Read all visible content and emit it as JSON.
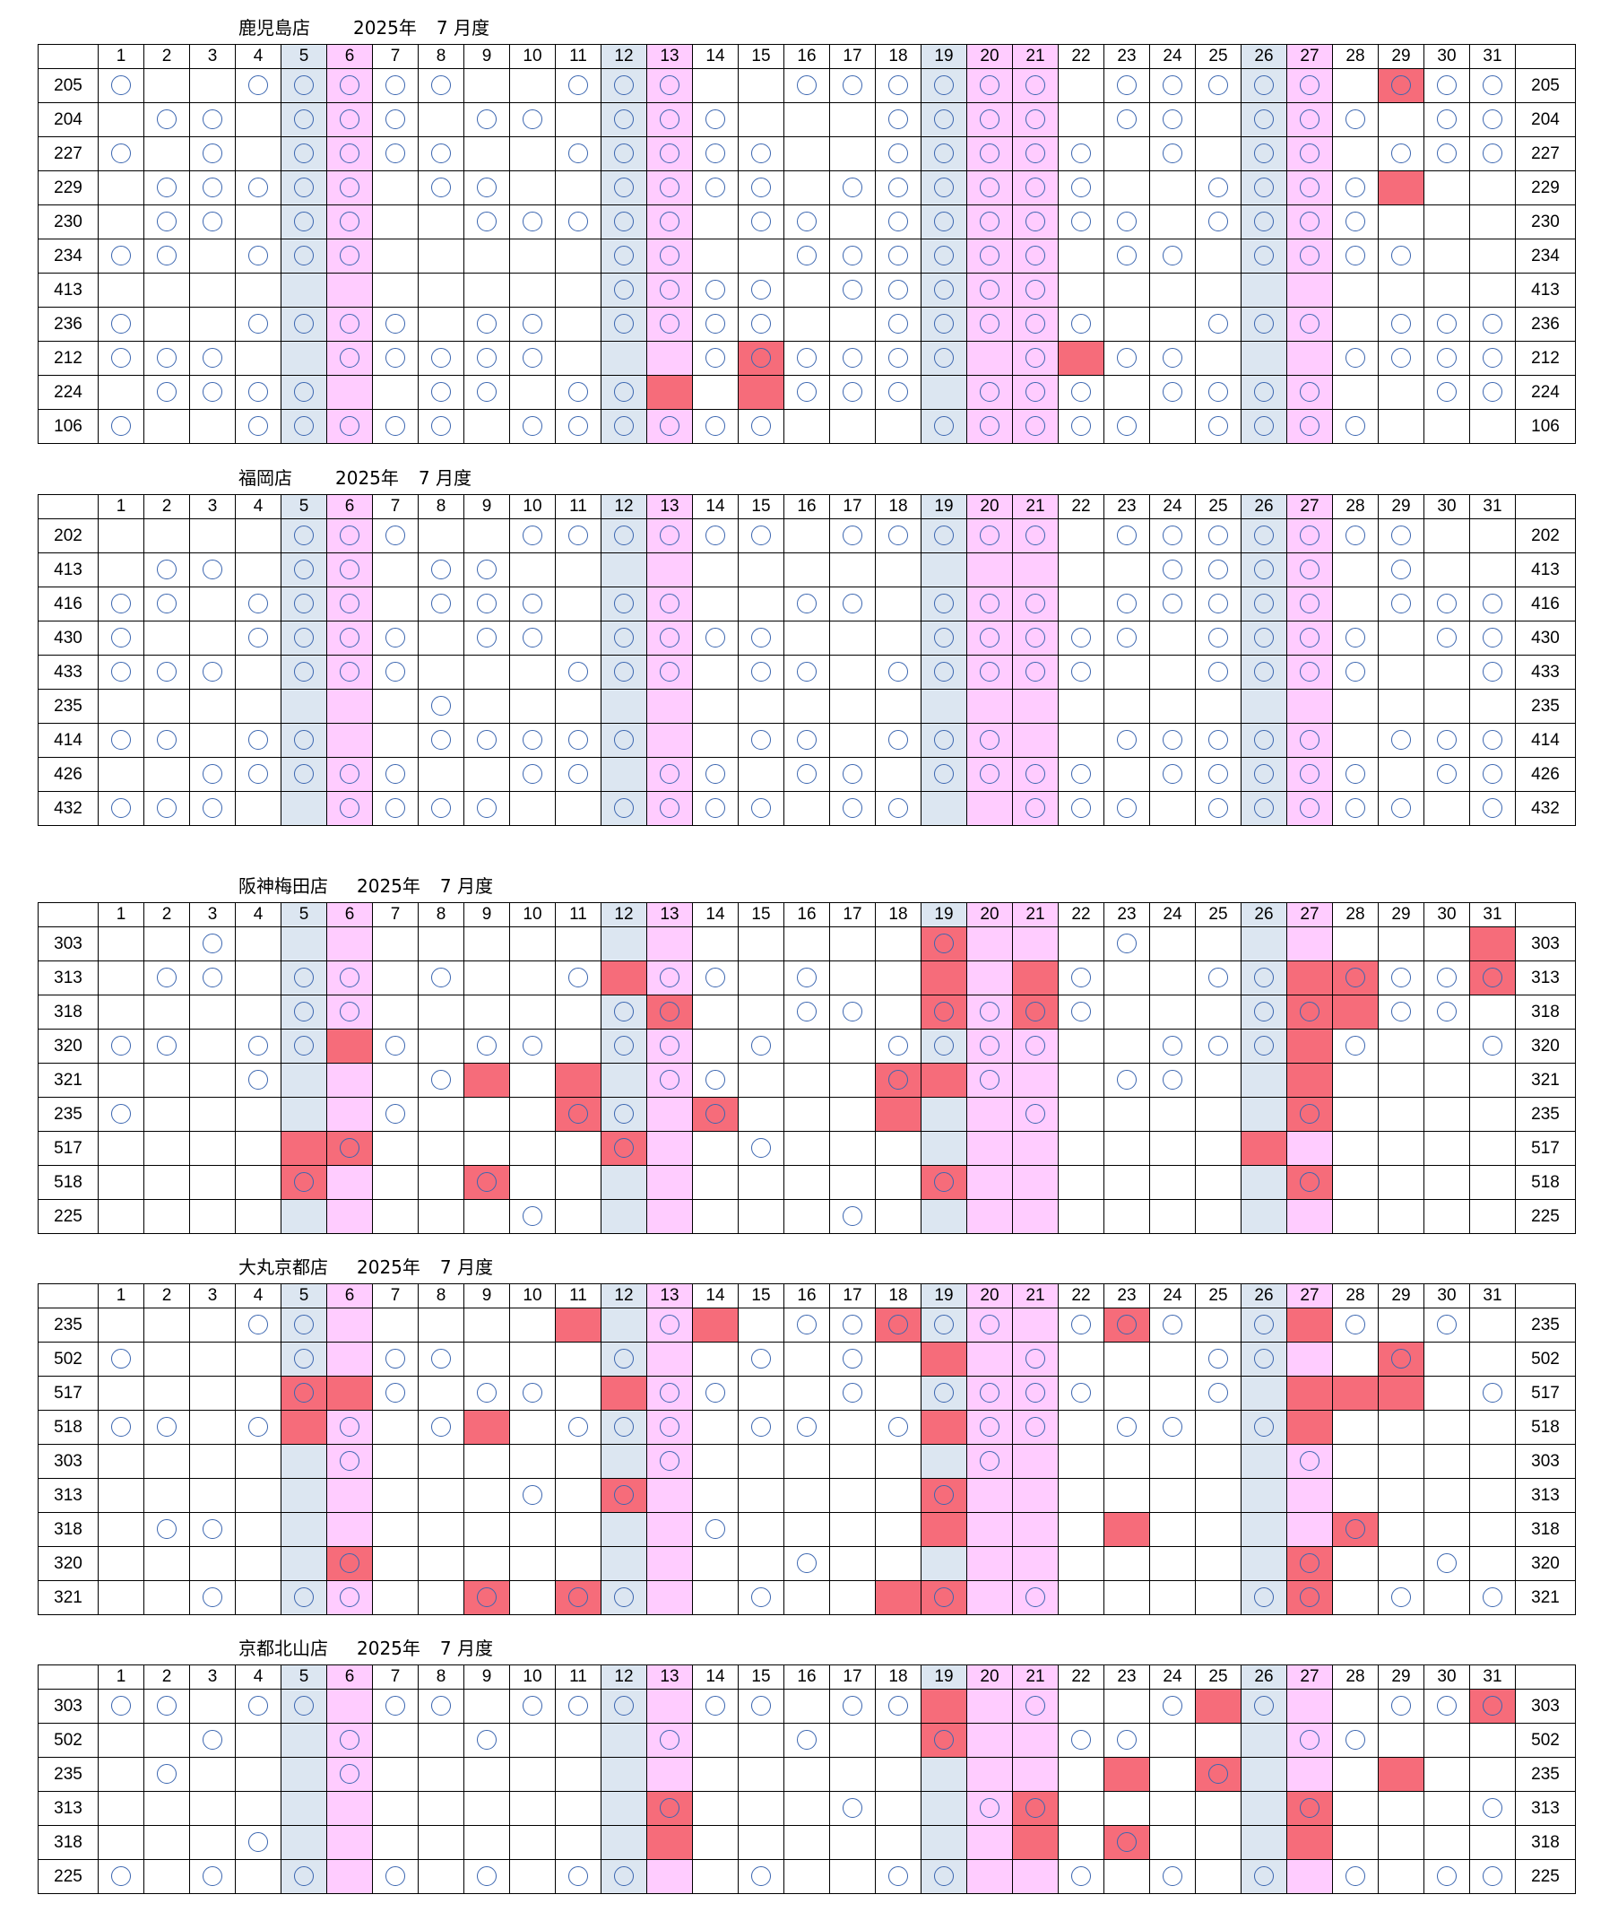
{
  "year_label": "2025年",
  "month_label": "7 月度",
  "days": [
    "1",
    "2",
    "3",
    "4",
    "5",
    "6",
    "7",
    "8",
    "9",
    "10",
    "11",
    "12",
    "13",
    "14",
    "15",
    "16",
    "17",
    "18",
    "19",
    "20",
    "21",
    "22",
    "23",
    "24",
    "25",
    "26",
    "27",
    "28",
    "29",
    "30",
    "31"
  ],
  "day_colors": {
    "5": "blue",
    "6": "pink",
    "12": "blue",
    "13": "pink",
    "19": "blue",
    "20": "pink",
    "21": "pink",
    "26": "blue",
    "27": "pink"
  },
  "colors": {
    "blue_column": "#dce6f1",
    "pink_column": "#ffccff",
    "red_cell": "#f66c7a",
    "circle": "#3b66b0"
  },
  "circle_symbol": "〇",
  "sections": [
    {
      "store": "鹿児島店",
      "rows": [
        {
          "id": "205",
          "circles": [
            1,
            4,
            5,
            6,
            7,
            8,
            11,
            12,
            13,
            16,
            17,
            18,
            19,
            20,
            21,
            23,
            24,
            25,
            26,
            27,
            29,
            30,
            31
          ],
          "red": [
            29
          ]
        },
        {
          "id": "204",
          "circles": [
            2,
            3,
            5,
            6,
            7,
            9,
            10,
            12,
            13,
            14,
            18,
            19,
            20,
            21,
            23,
            24,
            26,
            27,
            28,
            30,
            31
          ],
          "red": []
        },
        {
          "id": "227",
          "circles": [
            1,
            3,
            5,
            6,
            7,
            8,
            11,
            12,
            13,
            14,
            15,
            18,
            19,
            20,
            21,
            22,
            24,
            26,
            27,
            29,
            30,
            31
          ],
          "red": []
        },
        {
          "id": "229",
          "circles": [
            2,
            3,
            4,
            5,
            6,
            8,
            9,
            12,
            13,
            14,
            15,
            17,
            18,
            19,
            20,
            21,
            22,
            25,
            26,
            27,
            28
          ],
          "red": [
            29
          ]
        },
        {
          "id": "230",
          "circles": [
            2,
            3,
            5,
            6,
            9,
            10,
            11,
            12,
            13,
            15,
            16,
            18,
            19,
            20,
            21,
            22,
            23,
            25,
            26,
            27,
            28
          ],
          "red": []
        },
        {
          "id": "234",
          "circles": [
            1,
            2,
            4,
            5,
            6,
            12,
            13,
            16,
            17,
            18,
            19,
            20,
            21,
            23,
            24,
            26,
            27,
            28,
            29
          ],
          "red": []
        },
        {
          "id": "413",
          "circles": [
            12,
            13,
            14,
            15,
            17,
            18,
            19,
            20,
            21
          ],
          "red": []
        },
        {
          "id": "236",
          "circles": [
            1,
            4,
            5,
            6,
            7,
            9,
            10,
            12,
            13,
            14,
            15,
            18,
            19,
            20,
            21,
            22,
            25,
            26,
            27,
            29,
            30,
            31
          ],
          "red": []
        },
        {
          "id": "212",
          "circles": [
            1,
            2,
            3,
            6,
            7,
            8,
            9,
            10,
            14,
            15,
            16,
            17,
            18,
            19,
            21,
            23,
            24,
            28,
            29,
            30,
            31
          ],
          "red": [
            15,
            22
          ]
        },
        {
          "id": "224",
          "circles": [
            2,
            3,
            4,
            5,
            8,
            9,
            11,
            12,
            16,
            17,
            18,
            20,
            21,
            22,
            24,
            25,
            26,
            27,
            30,
            31
          ],
          "red": [
            13,
            15
          ]
        },
        {
          "id": "106",
          "circles": [
            1,
            4,
            5,
            6,
            7,
            8,
            10,
            11,
            12,
            13,
            14,
            15,
            19,
            20,
            21,
            22,
            23,
            25,
            26,
            27,
            28
          ],
          "red": []
        }
      ]
    },
    {
      "store": "福岡店",
      "rows": [
        {
          "id": "202",
          "circles": [
            5,
            6,
            7,
            10,
            11,
            12,
            13,
            14,
            15,
            17,
            18,
            19,
            20,
            21,
            23,
            24,
            25,
            26,
            27,
            28,
            29
          ],
          "red": []
        },
        {
          "id": "413",
          "circles": [
            2,
            3,
            5,
            6,
            8,
            9,
            24,
            25,
            26,
            27,
            29
          ],
          "red": []
        },
        {
          "id": "416",
          "circles": [
            1,
            2,
            4,
            5,
            6,
            8,
            9,
            10,
            12,
            13,
            16,
            17,
            19,
            20,
            21,
            23,
            24,
            25,
            26,
            27,
            29,
            30,
            31
          ],
          "red": []
        },
        {
          "id": "430",
          "circles": [
            1,
            4,
            5,
            6,
            7,
            9,
            10,
            12,
            13,
            14,
            15,
            19,
            20,
            21,
            22,
            23,
            25,
            26,
            27,
            28,
            30,
            31
          ],
          "red": []
        },
        {
          "id": "433",
          "circles": [
            1,
            2,
            3,
            5,
            6,
            7,
            11,
            12,
            13,
            15,
            16,
            18,
            19,
            20,
            21,
            22,
            25,
            26,
            27,
            28,
            31
          ],
          "red": []
        },
        {
          "id": "235",
          "circles": [
            8
          ],
          "red": []
        },
        {
          "id": "414",
          "circles": [
            1,
            2,
            4,
            5,
            8,
            9,
            10,
            11,
            12,
            15,
            16,
            18,
            19,
            20,
            23,
            24,
            25,
            26,
            27,
            29,
            30,
            31
          ],
          "red": []
        },
        {
          "id": "426",
          "circles": [
            3,
            4,
            5,
            6,
            7,
            10,
            11,
            13,
            14,
            16,
            17,
            19,
            20,
            21,
            22,
            24,
            25,
            26,
            27,
            28,
            30,
            31
          ],
          "red": []
        },
        {
          "id": "432",
          "circles": [
            1,
            2,
            3,
            6,
            7,
            8,
            9,
            12,
            13,
            14,
            15,
            17,
            18,
            21,
            22,
            23,
            25,
            26,
            27,
            28,
            29,
            31
          ],
          "red": []
        }
      ]
    },
    {
      "store": "阪神梅田店",
      "rows": [
        {
          "id": "303",
          "circles": [
            3,
            19,
            23
          ],
          "red": [
            19,
            31
          ]
        },
        {
          "id": "313",
          "circles": [
            2,
            3,
            5,
            6,
            8,
            11,
            13,
            14,
            16,
            22,
            25,
            26,
            28,
            29,
            30,
            31
          ],
          "red": [
            12,
            19,
            21,
            27,
            28,
            31
          ]
        },
        {
          "id": "318",
          "circles": [
            5,
            6,
            12,
            13,
            16,
            17,
            19,
            20,
            21,
            22,
            26,
            27,
            29,
            30
          ],
          "red": [
            13,
            19,
            21,
            27,
            28
          ]
        },
        {
          "id": "320",
          "circles": [
            1,
            2,
            4,
            5,
            7,
            9,
            10,
            12,
            13,
            15,
            18,
            19,
            20,
            21,
            24,
            25,
            26,
            28,
            31
          ],
          "red": [
            6,
            27
          ]
        },
        {
          "id": "321",
          "circles": [
            4,
            8,
            13,
            14,
            18,
            20,
            23,
            24
          ],
          "red": [
            9,
            11,
            18,
            19,
            27
          ]
        },
        {
          "id": "235",
          "circles": [
            1,
            7,
            11,
            12,
            14,
            21,
            27
          ],
          "red": [
            11,
            14,
            18,
            27
          ]
        },
        {
          "id": "517",
          "circles": [
            6,
            12,
            15
          ],
          "red": [
            5,
            6,
            12,
            26
          ]
        },
        {
          "id": "518",
          "circles": [
            5,
            9,
            19,
            27
          ],
          "red": [
            5,
            9,
            19,
            27
          ]
        },
        {
          "id": "225",
          "circles": [
            10,
            17
          ],
          "red": []
        }
      ]
    },
    {
      "store": "大丸京都店",
      "rows": [
        {
          "id": "235",
          "circles": [
            4,
            5,
            13,
            16,
            17,
            18,
            19,
            20,
            22,
            23,
            24,
            26,
            28,
            30
          ],
          "red": [
            11,
            14,
            18,
            23,
            27
          ]
        },
        {
          "id": "502",
          "circles": [
            1,
            5,
            7,
            8,
            12,
            15,
            17,
            21,
            25,
            26,
            29
          ],
          "red": [
            19,
            29
          ]
        },
        {
          "id": "517",
          "circles": [
            5,
            7,
            9,
            10,
            13,
            14,
            17,
            19,
            20,
            21,
            22,
            25,
            31
          ],
          "red": [
            5,
            6,
            12,
            27,
            28,
            29
          ]
        },
        {
          "id": "518",
          "circles": [
            1,
            2,
            4,
            6,
            8,
            11,
            12,
            13,
            15,
            16,
            18,
            20,
            21,
            23,
            24,
            26
          ],
          "red": [
            5,
            9,
            19,
            27
          ]
        },
        {
          "id": "303",
          "circles": [
            6,
            13,
            20,
            27
          ],
          "red": []
        },
        {
          "id": "313",
          "circles": [
            10,
            12,
            19
          ],
          "red": [
            12,
            19
          ]
        },
        {
          "id": "318",
          "circles": [
            2,
            3,
            14,
            28
          ],
          "red": [
            19,
            23,
            28
          ]
        },
        {
          "id": "320",
          "circles": [
            6,
            16,
            27,
            30
          ],
          "red": [
            6,
            27
          ]
        },
        {
          "id": "321",
          "circles": [
            3,
            5,
            6,
            9,
            11,
            12,
            15,
            19,
            21,
            26,
            27,
            29,
            31
          ],
          "red": [
            9,
            11,
            18,
            19,
            27
          ]
        }
      ]
    },
    {
      "store": "京都北山店",
      "rows": [
        {
          "id": "303",
          "circles": [
            1,
            2,
            4,
            5,
            7,
            8,
            10,
            11,
            12,
            14,
            15,
            17,
            18,
            21,
            24,
            26,
            29,
            30,
            31
          ],
          "red": [
            19,
            25,
            31
          ]
        },
        {
          "id": "502",
          "circles": [
            3,
            6,
            9,
            13,
            16,
            19,
            22,
            23,
            27,
            28
          ],
          "red": [
            19
          ]
        },
        {
          "id": "235",
          "circles": [
            2,
            6,
            25
          ],
          "red": [
            23,
            25,
            29
          ]
        },
        {
          "id": "313",
          "circles": [
            13,
            17,
            20,
            21,
            27,
            31
          ],
          "red": [
            13,
            21,
            27
          ]
        },
        {
          "id": "318",
          "circles": [
            4,
            23
          ],
          "red": [
            13,
            21,
            23,
            27
          ]
        },
        {
          "id": "225",
          "circles": [
            1,
            3,
            5,
            7,
            9,
            11,
            12,
            15,
            18,
            19,
            22,
            24,
            26,
            28,
            30,
            31
          ],
          "red": []
        }
      ]
    }
  ]
}
